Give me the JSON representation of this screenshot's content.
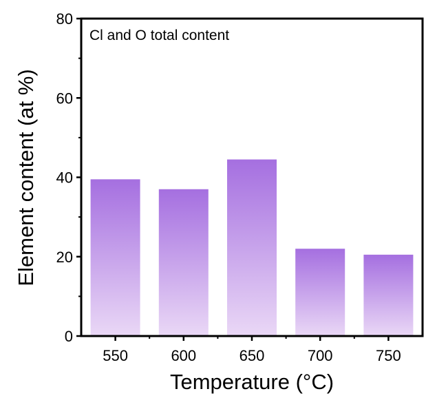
{
  "chart_data": {
    "type": "bar",
    "annotation": "Cl and O total content",
    "xlabel": "Temperature (°C)",
    "ylabel": "Element content (at %)",
    "categories": [
      "550",
      "600",
      "650",
      "700",
      "750"
    ],
    "values": [
      39.5,
      37,
      44.5,
      22,
      20.5
    ],
    "ylim": [
      0,
      80
    ],
    "yticks": [
      0,
      20,
      40,
      60,
      80
    ],
    "grid": false,
    "legend": "none",
    "bar_color_top": "#a56fe0",
    "bar_color_bottom": "#ead8f6"
  }
}
